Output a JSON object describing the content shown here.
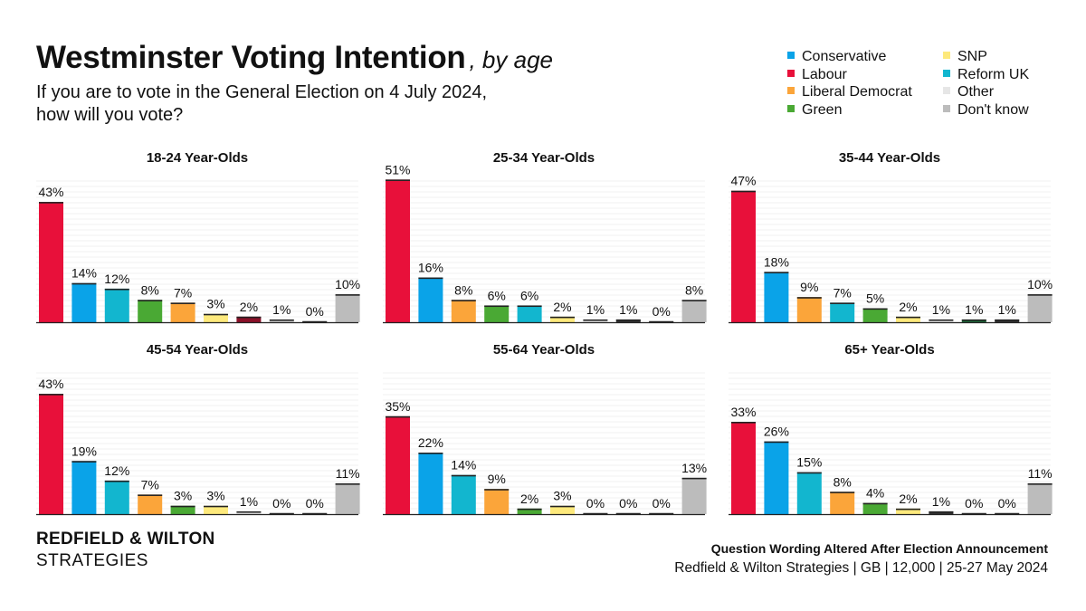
{
  "header": {
    "title": "Westminster Voting Intention",
    "title_suffix": ", by age",
    "subtitle_line1": "If you are to vote in the General Election on 4 July 2024,",
    "subtitle_line2": "how will you vote?"
  },
  "legend": [
    {
      "label": "Conservative",
      "color": "#0aa3e8"
    },
    {
      "label": "Labour",
      "color": "#e8103a"
    },
    {
      "label": "Liberal Democrat",
      "color": "#fba53a"
    },
    {
      "label": "Green",
      "color": "#4aa934"
    },
    {
      "label": "SNP",
      "color": "#fde97c"
    },
    {
      "label": "Reform UK",
      "color": "#12b6cf"
    },
    {
      "label": "Other",
      "color": "#e6e6e6"
    },
    {
      "label": "Don't know",
      "color": "#bcbcbc"
    }
  ],
  "chart_data": [
    {
      "type": "bar",
      "title": "18-24 Year-Olds",
      "ylim": [
        0,
        55
      ],
      "bars": [
        {
          "party": "Labour",
          "value": 43,
          "label": "43%",
          "color": "#e8103a"
        },
        {
          "party": "Conservative",
          "value": 14,
          "label": "14%",
          "color": "#0aa3e8"
        },
        {
          "party": "Reform UK",
          "value": 12,
          "label": "12%",
          "color": "#12b6cf"
        },
        {
          "party": "Green",
          "value": 8,
          "label": "8%",
          "color": "#4aa934"
        },
        {
          "party": "Liberal Democrat",
          "value": 7,
          "label": "7%",
          "color": "#fba53a"
        },
        {
          "party": "SNP",
          "value": 3,
          "label": "3%",
          "color": "#fde97c"
        },
        {
          "party": "",
          "value": 2,
          "label": "2%",
          "color": "#8a1028"
        },
        {
          "party": "",
          "value": 1,
          "label": "1%",
          "color": "#d0d0d0"
        },
        {
          "party": "",
          "value": 0,
          "label": "0%",
          "color": "#999999"
        },
        {
          "party": "Don't know",
          "value": 10,
          "label": "10%",
          "color": "#bcbcbc"
        }
      ]
    },
    {
      "type": "bar",
      "title": "25-34 Year-Olds",
      "ylim": [
        0,
        55
      ],
      "bars": [
        {
          "party": "Labour",
          "value": 51,
          "label": "51%",
          "color": "#e8103a"
        },
        {
          "party": "Conservative",
          "value": 16,
          "label": "16%",
          "color": "#0aa3e8"
        },
        {
          "party": "Liberal Democrat",
          "value": 8,
          "label": "8%",
          "color": "#fba53a"
        },
        {
          "party": "Green",
          "value": 6,
          "label": "6%",
          "color": "#4aa934"
        },
        {
          "party": "Reform UK",
          "value": 6,
          "label": "6%",
          "color": "#12b6cf"
        },
        {
          "party": "SNP",
          "value": 2,
          "label": "2%",
          "color": "#fde97c"
        },
        {
          "party": "Other",
          "value": 1,
          "label": "1%",
          "color": "#e6e6e6"
        },
        {
          "party": "",
          "value": 1,
          "label": "1%",
          "color": "#333333"
        },
        {
          "party": "",
          "value": 0,
          "label": "0%",
          "color": "#999999"
        },
        {
          "party": "Don't know",
          "value": 8,
          "label": "8%",
          "color": "#bcbcbc"
        }
      ]
    },
    {
      "type": "bar",
      "title": "35-44 Year-Olds",
      "ylim": [
        0,
        55
      ],
      "bars": [
        {
          "party": "Labour",
          "value": 47,
          "label": "47%",
          "color": "#e8103a"
        },
        {
          "party": "Conservative",
          "value": 18,
          "label": "18%",
          "color": "#0aa3e8"
        },
        {
          "party": "Liberal Democrat",
          "value": 9,
          "label": "9%",
          "color": "#fba53a"
        },
        {
          "party": "Reform UK",
          "value": 7,
          "label": "7%",
          "color": "#12b6cf"
        },
        {
          "party": "Green",
          "value": 5,
          "label": "5%",
          "color": "#4aa934"
        },
        {
          "party": "SNP",
          "value": 2,
          "label": "2%",
          "color": "#fde97c"
        },
        {
          "party": "Other",
          "value": 1,
          "label": "1%",
          "color": "#e6e6e6"
        },
        {
          "party": "",
          "value": 1,
          "label": "1%",
          "color": "#1e6a3a"
        },
        {
          "party": "",
          "value": 1,
          "label": "1%",
          "color": "#333333"
        },
        {
          "party": "Don't know",
          "value": 10,
          "label": "10%",
          "color": "#bcbcbc"
        }
      ]
    },
    {
      "type": "bar",
      "title": "45-54 Year-Olds",
      "ylim": [
        0,
        55
      ],
      "bars": [
        {
          "party": "Labour",
          "value": 43,
          "label": "43%",
          "color": "#e8103a"
        },
        {
          "party": "Conservative",
          "value": 19,
          "label": "19%",
          "color": "#0aa3e8"
        },
        {
          "party": "Reform UK",
          "value": 12,
          "label": "12%",
          "color": "#12b6cf"
        },
        {
          "party": "Liberal Democrat",
          "value": 7,
          "label": "7%",
          "color": "#fba53a"
        },
        {
          "party": "Green",
          "value": 3,
          "label": "3%",
          "color": "#4aa934"
        },
        {
          "party": "SNP",
          "value": 3,
          "label": "3%",
          "color": "#fde97c"
        },
        {
          "party": "Other",
          "value": 1,
          "label": "1%",
          "color": "#e6e6e6"
        },
        {
          "party": "",
          "value": 0,
          "label": "0%",
          "color": "#999999"
        },
        {
          "party": "",
          "value": 0,
          "label": "0%",
          "color": "#999999"
        },
        {
          "party": "Don't know",
          "value": 11,
          "label": "11%",
          "color": "#bcbcbc"
        }
      ]
    },
    {
      "type": "bar",
      "title": "55-64 Year-Olds",
      "ylim": [
        0,
        55
      ],
      "bars": [
        {
          "party": "Labour",
          "value": 35,
          "label": "35%",
          "color": "#e8103a"
        },
        {
          "party": "Conservative",
          "value": 22,
          "label": "22%",
          "color": "#0aa3e8"
        },
        {
          "party": "Reform UK",
          "value": 14,
          "label": "14%",
          "color": "#12b6cf"
        },
        {
          "party": "Liberal Democrat",
          "value": 9,
          "label": "9%",
          "color": "#fba53a"
        },
        {
          "party": "Green",
          "value": 2,
          "label": "2%",
          "color": "#4aa934"
        },
        {
          "party": "SNP",
          "value": 3,
          "label": "3%",
          "color": "#fde97c"
        },
        {
          "party": "",
          "value": 0,
          "label": "0%",
          "color": "#999999"
        },
        {
          "party": "",
          "value": 0,
          "label": "0%",
          "color": "#999999"
        },
        {
          "party": "",
          "value": 0,
          "label": "0%",
          "color": "#999999"
        },
        {
          "party": "Don't know",
          "value": 13,
          "label": "13%",
          "color": "#bcbcbc"
        }
      ]
    },
    {
      "type": "bar",
      "title": "65+ Year-Olds",
      "ylim": [
        0,
        55
      ],
      "bars": [
        {
          "party": "Labour",
          "value": 33,
          "label": "33%",
          "color": "#e8103a"
        },
        {
          "party": "Conservative",
          "value": 26,
          "label": "26%",
          "color": "#0aa3e8"
        },
        {
          "party": "Reform UK",
          "value": 15,
          "label": "15%",
          "color": "#12b6cf"
        },
        {
          "party": "Liberal Democrat",
          "value": 8,
          "label": "8%",
          "color": "#fba53a"
        },
        {
          "party": "Green",
          "value": 4,
          "label": "4%",
          "color": "#4aa934"
        },
        {
          "party": "SNP",
          "value": 2,
          "label": "2%",
          "color": "#fde97c"
        },
        {
          "party": "",
          "value": 1,
          "label": "1%",
          "color": "#333333"
        },
        {
          "party": "",
          "value": 0,
          "label": "0%",
          "color": "#999999"
        },
        {
          "party": "",
          "value": 0,
          "label": "0%",
          "color": "#999999"
        },
        {
          "party": "Don't know",
          "value": 11,
          "label": "11%",
          "color": "#bcbcbc"
        }
      ]
    }
  ],
  "brand": {
    "line1": "REDFIELD & WILTON",
    "line2": "STRATEGIES"
  },
  "footer": {
    "note": "Question Wording Altered After Election Announcement",
    "source": "Redfield & Wilton Strategies | GB | 12,000 | 25-27 May 2024"
  }
}
